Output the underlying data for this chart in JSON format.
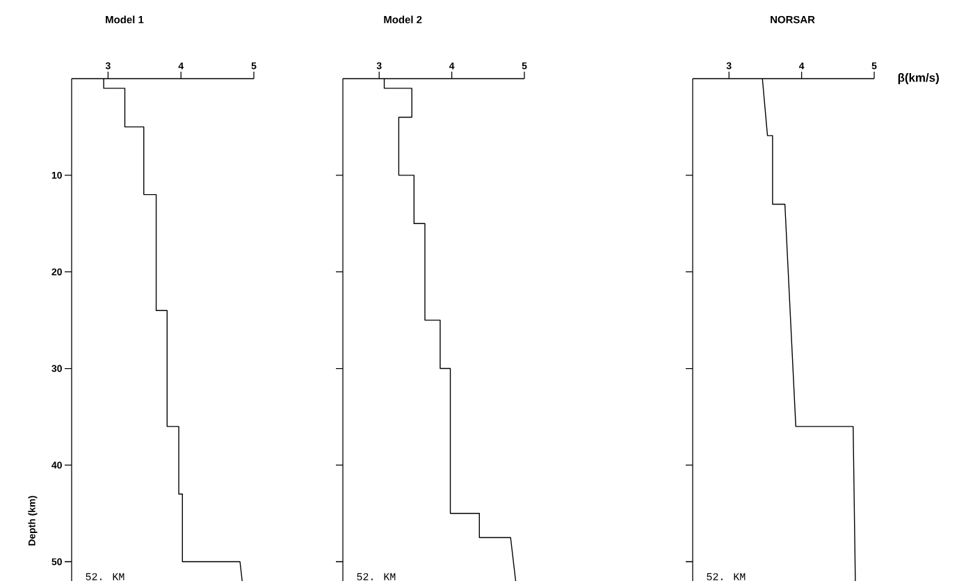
{
  "chart_data": [
    {
      "type": "line",
      "title": "Model 1",
      "ylabel": "Depth (km)",
      "xlim": [
        2.5,
        5
      ],
      "xticks": [
        3,
        4,
        5
      ],
      "ylim": [
        52,
        0
      ],
      "yticks": [
        10,
        20,
        30,
        40,
        50
      ],
      "annotations": [
        "52. KM"
      ],
      "series": [
        {
          "color": "#000000",
          "x": [
            2.94,
            2.94,
            3.23,
            3.23,
            3.49,
            3.49,
            3.66,
            3.66,
            3.81,
            3.81,
            3.97,
            3.97,
            4.02,
            4.02,
            4.81,
            4.84
          ],
          "values": [
            0,
            1,
            1,
            5,
            5,
            12,
            12,
            24,
            24,
            36,
            36,
            43,
            43,
            50,
            50,
            52
          ]
        }
      ]
    },
    {
      "type": "line",
      "title": "Model 2",
      "xlim": [
        2.5,
        5
      ],
      "xticks": [
        3,
        4,
        5
      ],
      "ylim": [
        52,
        0
      ],
      "yticks": [
        {
          "value": 10,
          "label": null
        },
        {
          "value": 20,
          "label": null
        },
        {
          "value": 30,
          "label": null
        },
        {
          "value": 40,
          "label": null
        },
        {
          "value": 50,
          "label": null
        }
      ],
      "tick_labels": "x",
      "annotations": [
        "52. KM"
      ],
      "series": [
        {
          "color": "#000000",
          "x": [
            3.07,
            3.07,
            3.45,
            3.45,
            3.27,
            3.27,
            3.48,
            3.48,
            3.63,
            3.63,
            3.84,
            3.84,
            3.98,
            3.98,
            4.38,
            4.38,
            4.81,
            4.88
          ],
          "values": [
            0,
            1,
            1,
            4,
            4,
            10,
            10,
            15,
            15,
            25,
            25,
            30,
            30,
            45,
            45,
            47.5,
            47.5,
            52
          ]
        }
      ]
    },
    {
      "type": "line",
      "title": "NORSAR",
      "xlabel": "β(km/s)",
      "xlim": [
        2.5,
        5
      ],
      "xticks": [
        3,
        4,
        5
      ],
      "ylim": [
        52,
        0
      ],
      "yticks": [
        {
          "value": 10,
          "label": null
        },
        {
          "value": 20,
          "label": null
        },
        {
          "value": 30,
          "label": null
        },
        {
          "value": 40,
          "label": null
        },
        {
          "value": 50,
          "label": null
        }
      ],
      "tick_labels": "x",
      "annotations": [
        "52. KM"
      ],
      "series": [
        {
          "color": "#000000",
          "x": [
            3.46,
            3.53,
            3.6,
            3.6,
            3.77,
            3.92,
            4.71,
            4.74
          ],
          "values": [
            0,
            5.9,
            5.9,
            13,
            13,
            36,
            36,
            52
          ]
        }
      ]
    }
  ]
}
